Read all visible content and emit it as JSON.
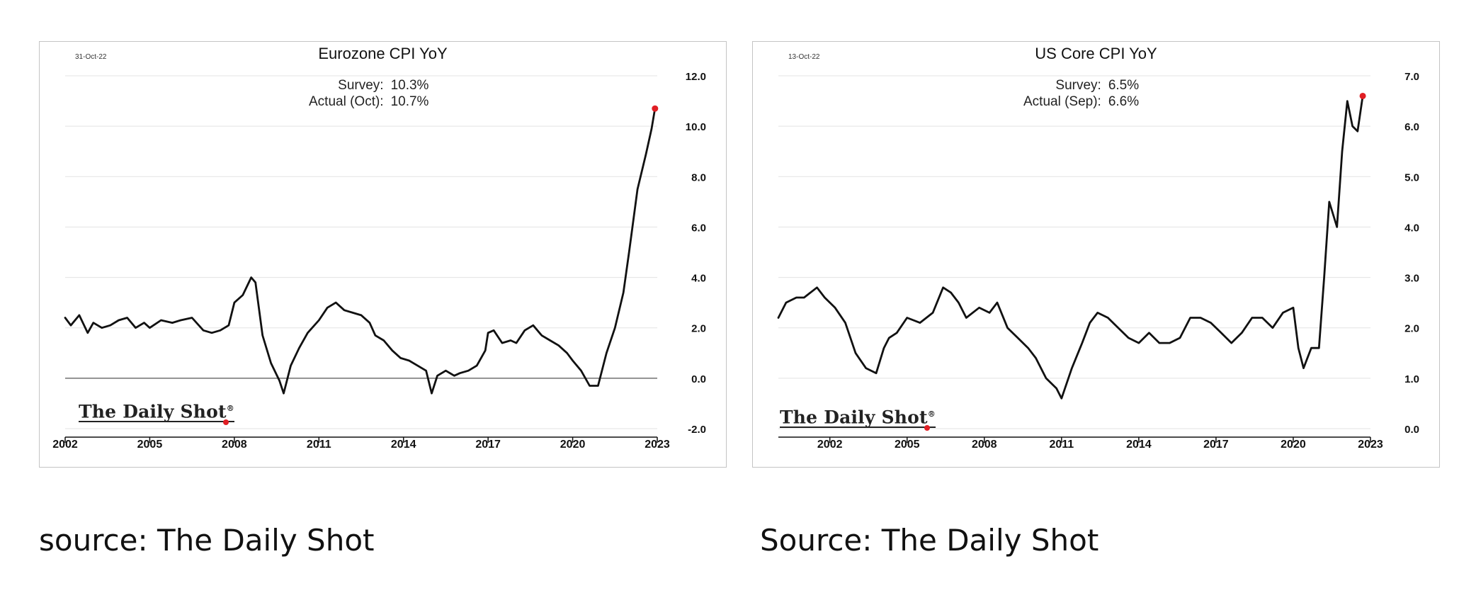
{
  "chart_data": [
    {
      "type": "line",
      "title": "Eurozone CPI YoY",
      "date_stamp": "31-Oct-22",
      "annotation": {
        "survey_label": "Survey:",
        "survey_value": "10.3%",
        "actual_label": "Actual (Oct):",
        "actual_value": "10.7%"
      },
      "watermark": "The Daily Shot",
      "x_ticks": [
        "2002",
        "2005",
        "2008",
        "2011",
        "2014",
        "2017",
        "2020",
        "2023"
      ],
      "y_ticks": [
        "12.0",
        "10.0",
        "8.0",
        "6.0",
        "4.0",
        "2.0",
        "0.0",
        "-2.0"
      ],
      "xlim": [
        2002.0,
        2023.0
      ],
      "ylim": [
        -2.0,
        12.0
      ],
      "y_axis_side": "right",
      "grid": true,
      "zero_line": true,
      "highlight_last_point": true,
      "colors": {
        "line": "#111111",
        "marker": "#e01e24"
      },
      "series": [
        {
          "x": [
            2002.0,
            2002.2,
            2002.5,
            2002.8,
            2003.0,
            2003.3,
            2003.6,
            2003.9,
            2004.2,
            2004.5,
            2004.8,
            2005.0,
            2005.4,
            2005.8,
            2006.1,
            2006.5,
            2006.9,
            2007.2,
            2007.5,
            2007.8,
            2008.0,
            2008.3,
            2008.6,
            2008.75,
            2009.0,
            2009.3,
            2009.6,
            2009.75,
            2010.0,
            2010.3,
            2010.6,
            2011.0,
            2011.3,
            2011.6,
            2011.9,
            2012.2,
            2012.5,
            2012.8,
            2013.0,
            2013.3,
            2013.6,
            2013.9,
            2014.2,
            2014.5,
            2014.8,
            2015.0,
            2015.2,
            2015.5,
            2015.8,
            2016.0,
            2016.3,
            2016.6,
            2016.9,
            2017.0,
            2017.2,
            2017.5,
            2017.8,
            2018.0,
            2018.3,
            2018.6,
            2018.9,
            2019.2,
            2019.5,
            2019.8,
            2020.0,
            2020.3,
            2020.6,
            2020.9,
            2021.2,
            2021.5,
            2021.8,
            2022.0,
            2022.3,
            2022.6,
            2022.8,
            2022.92
          ],
          "values": [
            2.4,
            2.1,
            2.5,
            1.8,
            2.2,
            2.0,
            2.1,
            2.3,
            2.4,
            2.0,
            2.2,
            2.0,
            2.3,
            2.2,
            2.3,
            2.4,
            1.9,
            1.8,
            1.9,
            2.1,
            3.0,
            3.3,
            4.0,
            3.8,
            1.7,
            0.6,
            -0.1,
            -0.6,
            0.5,
            1.2,
            1.8,
            2.3,
            2.8,
            3.0,
            2.7,
            2.6,
            2.5,
            2.2,
            1.7,
            1.5,
            1.1,
            0.8,
            0.7,
            0.5,
            0.3,
            -0.6,
            0.1,
            0.3,
            0.1,
            0.2,
            0.3,
            0.5,
            1.1,
            1.8,
            1.9,
            1.4,
            1.5,
            1.4,
            1.9,
            2.1,
            1.7,
            1.5,
            1.3,
            1.0,
            0.7,
            0.3,
            -0.3,
            -0.3,
            1.0,
            2.0,
            3.4,
            5.0,
            7.5,
            8.9,
            9.9,
            10.7
          ]
        }
      ]
    },
    {
      "type": "line",
      "title": "US Core CPI YoY",
      "date_stamp": "13-Oct-22",
      "annotation": {
        "survey_label": "Survey:",
        "survey_value": "6.5%",
        "actual_label": "Actual (Sep):",
        "actual_value": "6.6%"
      },
      "watermark": "The Daily Shot",
      "x_ticks": [
        "2002",
        "2005",
        "2008",
        "2011",
        "2014",
        "2017",
        "2020",
        "2023"
      ],
      "y_ticks": [
        "7.0",
        "6.0",
        "5.0",
        "4.0",
        "3.0",
        "2.0",
        "1.0",
        "0.0"
      ],
      "xlim": [
        2000.0,
        2023.0
      ],
      "ylim": [
        0.0,
        7.0
      ],
      "y_axis_side": "right",
      "grid": true,
      "zero_line": false,
      "highlight_last_point": true,
      "colors": {
        "line": "#111111",
        "marker": "#e01e24"
      },
      "series": [
        {
          "x": [
            2000.0,
            2000.3,
            2000.7,
            2001.0,
            2001.5,
            2001.8,
            2002.2,
            2002.6,
            2003.0,
            2003.4,
            2003.8,
            2004.1,
            2004.3,
            2004.6,
            2005.0,
            2005.5,
            2006.0,
            2006.4,
            2006.7,
            2007.0,
            2007.3,
            2007.8,
            2008.2,
            2008.5,
            2008.9,
            2009.3,
            2009.7,
            2010.0,
            2010.4,
            2010.8,
            2011.0,
            2011.4,
            2011.8,
            2012.1,
            2012.4,
            2012.8,
            2013.2,
            2013.6,
            2014.0,
            2014.4,
            2014.8,
            2015.2,
            2015.6,
            2016.0,
            2016.4,
            2016.8,
            2017.2,
            2017.6,
            2018.0,
            2018.4,
            2018.8,
            2019.2,
            2019.6,
            2020.0,
            2020.2,
            2020.4,
            2020.7,
            2021.0,
            2021.2,
            2021.4,
            2021.7,
            2021.9,
            2022.1,
            2022.3,
            2022.5,
            2022.7
          ],
          "values": [
            2.2,
            2.5,
            2.6,
            2.6,
            2.8,
            2.6,
            2.4,
            2.1,
            1.5,
            1.2,
            1.1,
            1.6,
            1.8,
            1.9,
            2.2,
            2.1,
            2.3,
            2.8,
            2.7,
            2.5,
            2.2,
            2.4,
            2.3,
            2.5,
            2.0,
            1.8,
            1.6,
            1.4,
            1.0,
            0.8,
            0.6,
            1.2,
            1.7,
            2.1,
            2.3,
            2.2,
            2.0,
            1.8,
            1.7,
            1.9,
            1.7,
            1.7,
            1.8,
            2.2,
            2.2,
            2.1,
            1.9,
            1.7,
            1.9,
            2.2,
            2.2,
            2.0,
            2.3,
            2.4,
            1.6,
            1.2,
            1.6,
            1.6,
            3.0,
            4.5,
            4.0,
            5.5,
            6.5,
            6.0,
            5.9,
            6.6
          ]
        }
      ]
    }
  ],
  "sources": [
    "source: The Daily Shot",
    "Source: The Daily Shot"
  ]
}
